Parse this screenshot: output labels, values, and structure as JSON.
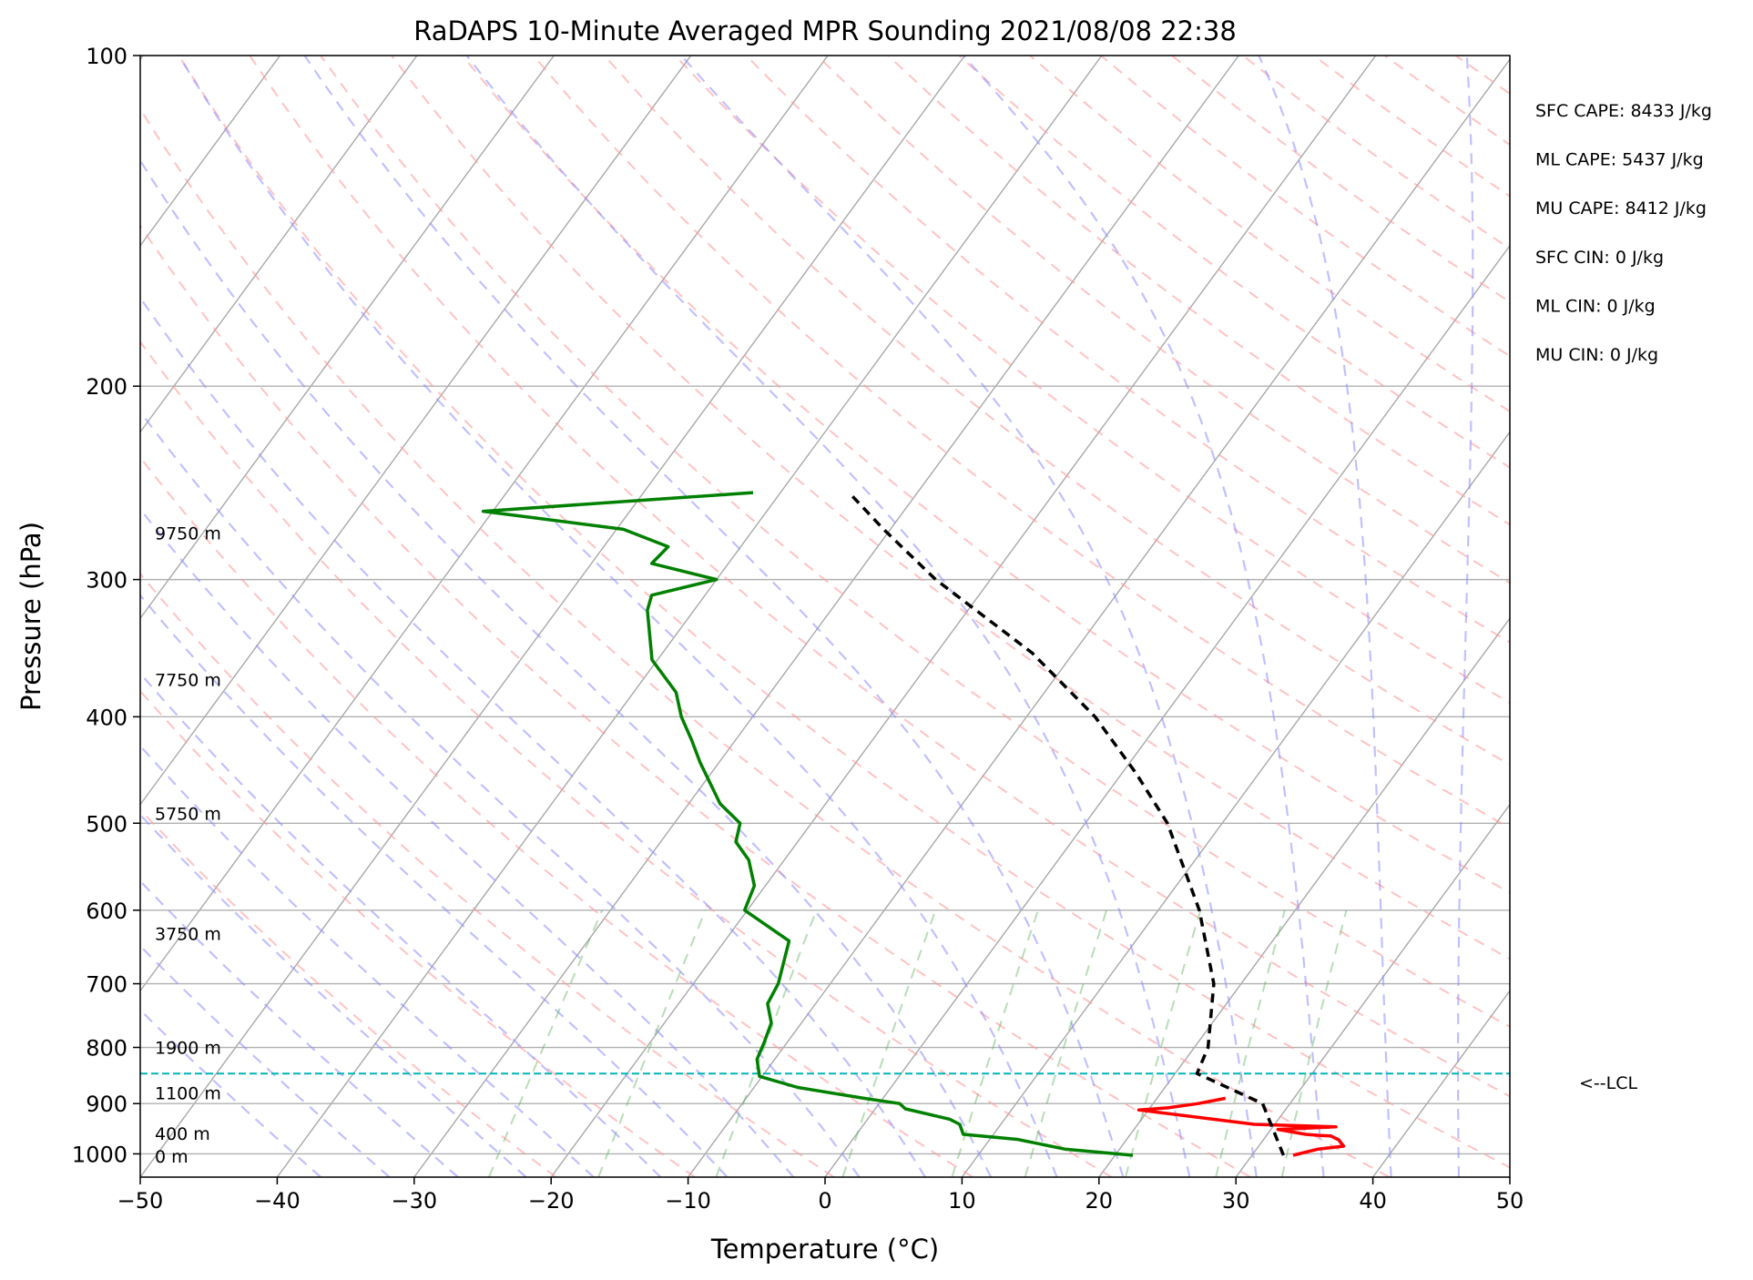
{
  "chart_data": {
    "type": "skew-t",
    "title": "RaDAPS 10-Minute Averaged MPR Sounding 2021/08/08 22:38",
    "xlabel": "Temperature (°C)",
    "ylabel": "Pressure (hPa)",
    "xlim": [
      -50,
      50
    ],
    "ylim": [
      1050,
      100
    ],
    "y_scale": "log",
    "x_ticks": [
      "−50",
      "−40",
      "−30",
      "−20",
      "−10",
      "0",
      "10",
      "20",
      "30",
      "40",
      "50"
    ],
    "y_ticks": [
      "100",
      "200",
      "300",
      "400",
      "500",
      "600",
      "700",
      "800",
      "900",
      "1000"
    ],
    "y_tick_values": [
      100,
      200,
      300,
      400,
      500,
      600,
      700,
      800,
      900,
      1000
    ],
    "grid": true,
    "stats": [
      "SFC CAPE: 8433 J/kg",
      "ML CAPE: 5437 J/kg",
      "MU CAPE: 8412 J/kg",
      "SFC CIN: 0 J/kg",
      "ML CIN: 0 J/kg",
      "MU CIN: 0 J/kg"
    ],
    "lcl": {
      "pressure": 845,
      "label": "<--LCL"
    },
    "height_labels": [
      {
        "label": "9750 m",
        "pressure": 272
      },
      {
        "label": "7750 m",
        "pressure": 370
      },
      {
        "label": "5750 m",
        "pressure": 490
      },
      {
        "label": "3750 m",
        "pressure": 630
      },
      {
        "label": "1900 m",
        "pressure": 800
      },
      {
        "label": "1100 m",
        "pressure": 880
      },
      {
        "label": "400 m",
        "pressure": 958
      },
      {
        "label": "0 m",
        "pressure": 1005
      }
    ],
    "series": [
      {
        "role": "temperature",
        "color": "#ff0000",
        "pressure": [
          1003,
          990,
          984,
          971,
          963,
          962,
          960,
          950,
          945,
          940,
          912,
          908,
          900,
          890
        ],
        "temperature": [
          33.0,
          34.5,
          36.2,
          35.5,
          34.7,
          33.8,
          32.8,
          30.5,
          34.6,
          28.5,
          19.3,
          21.3,
          23.3,
          25.0
        ]
      },
      {
        "role": "dewpoint",
        "color": "#008000",
        "pressure": [
          1003,
          990,
          970,
          960,
          940,
          930,
          910,
          900,
          890,
          870,
          850,
          820,
          790,
          760,
          730,
          700,
          640,
          600,
          570,
          540,
          520,
          500,
          480,
          440,
          420,
          400,
          380,
          355,
          320,
          310,
          300,
          290,
          280,
          270,
          260,
          250
        ],
        "temperature": [
          21.3,
          16.0,
          12.0,
          7.8,
          7.0,
          6.0,
          2.2,
          1.5,
          -1.4,
          -6.8,
          -10.2,
          -11.3,
          -11.7,
          -12.2,
          -13.5,
          -13.8,
          -15.3,
          -20.2,
          -20.8,
          -22.6,
          -24.5,
          -25.2,
          -27.7,
          -31.4,
          -33.2,
          -35.2,
          -36.9,
          -40.4,
          -43.4,
          -43.9,
          -40.0,
          -45.6,
          -45.3,
          -49.5,
          -60.7,
          -42.0
        ]
      },
      {
        "role": "parcel",
        "color": "#000000",
        "pressure": [
          1003,
          900,
          845,
          800,
          700,
          600,
          500,
          450,
          400,
          350,
          300,
          270,
          250
        ],
        "temperature": [
          32.3,
          28.0,
          21.6,
          21.0,
          18.0,
          13.0,
          6.0,
          1.0,
          -5.0,
          -13.0,
          -24.0,
          -30.5,
          -35.0
        ]
      }
    ]
  }
}
